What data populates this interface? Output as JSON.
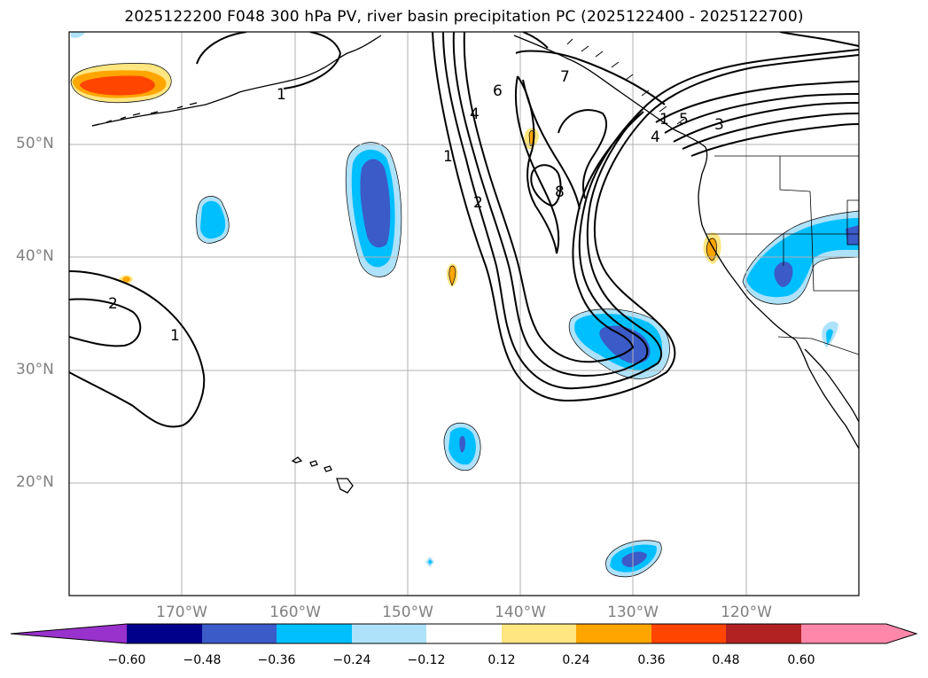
{
  "title": "2025122200 F048 300 hPa PV, river basin precipitation PC (2025122400 - 2025122700)",
  "map": {
    "lat_labels": [
      "50°N",
      "40°N",
      "30°N",
      "20°N"
    ],
    "lon_labels": [
      "170°W",
      "160°W",
      "150°W",
      "140°W",
      "130°W",
      "120°W"
    ],
    "pv_contour_labels": [
      "1",
      "2",
      "1",
      "1",
      "2",
      "4",
      "6",
      "7",
      "8",
      "5",
      "3",
      "4",
      "1"
    ],
    "colors": {
      "neg_strong": "#3b5bc8",
      "neg_mid": "#00bfff",
      "neg_weak": "#aee2fa",
      "pos_weak": "#ffe680",
      "pos_mid": "#ffa500",
      "pos_strong": "#ff4500"
    }
  },
  "colorbar": {
    "ticks": [
      "−0.60",
      "−0.48",
      "−0.36",
      "−0.24",
      "−0.12",
      "0.12",
      "0.24",
      "0.36",
      "0.48",
      "0.60"
    ],
    "colors": [
      "#9932cc",
      "#00008b",
      "#3b5bc8",
      "#00bfff",
      "#aee2fa",
      "#ffffff",
      "#ffe680",
      "#ffa500",
      "#ff4500",
      "#b22222",
      "#ff88aa",
      "#ff88aa"
    ]
  }
}
